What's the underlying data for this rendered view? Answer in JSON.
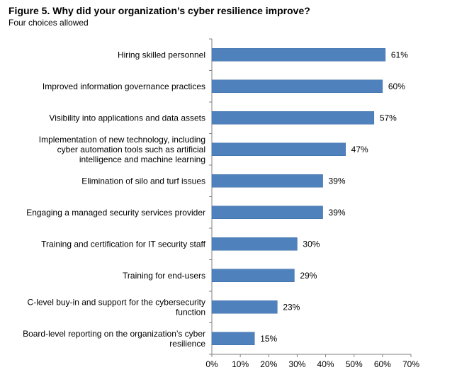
{
  "title": "Figure 5. Why did your organization’s cyber resilience improve?",
  "subtitle": "Four choices allowed",
  "chart_data": {
    "type": "bar",
    "orientation": "horizontal",
    "categories": [
      "Hiring skilled personnel",
      "Improved information governance practices",
      "Visibility into applications and data assets",
      "Implementation of new technology, including cyber automation tools such as artificial intelligence and machine learning",
      "Elimination of silo and turf issues",
      "Engaging a managed security services provider",
      "Training and certification for IT security staff",
      "Training for end-users",
      "C-level buy-in and support for the cybersecurity function",
      "Board-level reporting on the organization’s cyber resilience"
    ],
    "category_lines": [
      [
        "Hiring skilled personnel"
      ],
      [
        "Improved information governance practices"
      ],
      [
        "Visibility into applications and data assets"
      ],
      [
        "Implementation of new technology, including",
        "cyber automation tools such as artificial",
        "intelligence and machine learning"
      ],
      [
        "Elimination of silo and turf issues"
      ],
      [
        "Engaging a managed security services provider"
      ],
      [
        "Training and certification for IT security staff"
      ],
      [
        "Training for end-users"
      ],
      [
        "C-level buy-in and support for the cybersecurity",
        "function"
      ],
      [
        "Board-level reporting on the organization’s cyber",
        "resilience"
      ]
    ],
    "values": [
      61,
      60,
      57,
      47,
      39,
      39,
      30,
      29,
      23,
      15
    ],
    "value_labels": [
      "61%",
      "60%",
      "57%",
      "47%",
      "39%",
      "39%",
      "30%",
      "29%",
      "23%",
      "15%"
    ],
    "xlim": [
      0,
      70
    ],
    "x_ticks": [
      0,
      10,
      20,
      30,
      40,
      50,
      60,
      70
    ],
    "x_tick_labels": [
      "0%",
      "10%",
      "20%",
      "30%",
      "40%",
      "50%",
      "60%",
      "70%"
    ],
    "grid": false,
    "bar_color": "#4f81bd",
    "bar_edge_color": "#3a6aa6"
  }
}
